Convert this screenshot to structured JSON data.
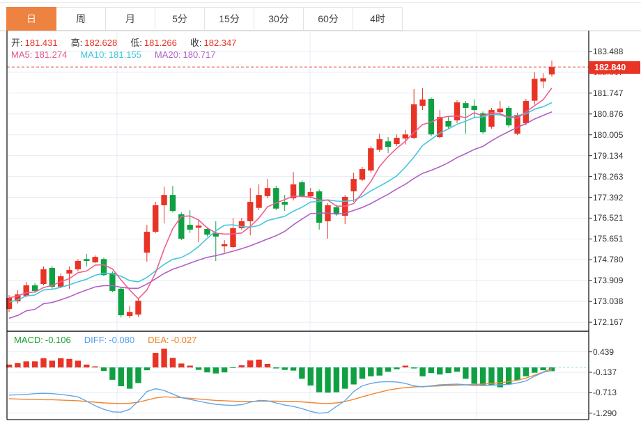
{
  "tabs": {
    "items": [
      {
        "label": "日",
        "active": true
      },
      {
        "label": "周",
        "active": false
      },
      {
        "label": "月",
        "active": false
      },
      {
        "label": "5分",
        "active": false
      },
      {
        "label": "15分",
        "active": false
      },
      {
        "label": "30分",
        "active": false
      },
      {
        "label": "60分",
        "active": false
      },
      {
        "label": "4时",
        "active": false
      }
    ]
  },
  "ohlc_legend": {
    "items": [
      {
        "label": "开:",
        "value": "181.431"
      },
      {
        "label": "高:",
        "value": "182.628"
      },
      {
        "label": "低:",
        "value": "181.266"
      },
      {
        "label": "收:",
        "value": "182.347"
      }
    ]
  },
  "ma_legend": {
    "items": [
      {
        "label": "MA5:",
        "value": "181.274",
        "color": "#e8538b"
      },
      {
        "label": "MA10:",
        "value": "181.155",
        "color": "#3fc3dc"
      },
      {
        "label": "MA20:",
        "value": "180.717",
        "color": "#b25ec6"
      }
    ]
  },
  "macd_legend": {
    "items": [
      {
        "label": "MACD:",
        "value": "-0.106",
        "color": "#18a22c"
      },
      {
        "label": "DIFF:",
        "value": "-0.080",
        "color": "#4f9ef0"
      },
      {
        "label": "DEA:",
        "value": "-0.027",
        "color": "#f0821e"
      }
    ]
  },
  "price_axis": {
    "ticks": [
      "183.488",
      "182.617",
      "181.747",
      "180.876",
      "180.005",
      "179.134",
      "178.263",
      "177.392",
      "176.521",
      "175.651",
      "174.780",
      "173.909",
      "173.038",
      "172.167"
    ],
    "current_price": "182.840"
  },
  "macd_axis": {
    "ticks": [
      "0.439",
      "-0.137",
      "-0.713",
      "-1.290"
    ]
  },
  "colors": {
    "up": "#e93325",
    "down": "#0fa043",
    "tab_active": "#ee8240",
    "ma5": "#ef5f8e",
    "ma10": "#44c6de",
    "ma20": "#b25ec6",
    "diff_line": "#64a6e8",
    "dea_line": "#f08632",
    "grid": "#e4ecf5",
    "zero_dash": "#9bd7e8",
    "frame": "#1a1a1a",
    "label_text": "#333333",
    "ohlc_value": "#e93325"
  },
  "chart_data": {
    "type": "candlestick+macd",
    "title": "",
    "price_ylim": [
      172.167,
      183.488
    ],
    "macd_ylim": [
      -1.29,
      0.439
    ],
    "grid": true,
    "current_price": 182.84,
    "candles": [
      [
        172.72,
        173.3,
        172.6,
        173.19
      ],
      [
        173.04,
        173.51,
        172.95,
        173.33
      ],
      [
        173.27,
        173.86,
        173.21,
        173.71
      ],
      [
        173.71,
        173.8,
        173.42,
        173.48
      ],
      [
        173.77,
        174.5,
        173.71,
        174.38
      ],
      [
        174.44,
        174.52,
        173.54,
        173.65
      ],
      [
        173.65,
        174.2,
        173.6,
        174.09
      ],
      [
        174.2,
        174.5,
        173.57,
        174.35
      ],
      [
        174.38,
        174.81,
        174.29,
        174.73
      ],
      [
        174.81,
        175.02,
        174.5,
        174.73
      ],
      [
        174.67,
        174.96,
        174.64,
        174.9
      ],
      [
        174.81,
        174.87,
        174.09,
        174.14
      ],
      [
        174.23,
        174.29,
        173.42,
        173.48
      ],
      [
        173.57,
        173.62,
        172.37,
        172.46
      ],
      [
        172.43,
        172.84,
        172.34,
        172.6
      ],
      [
        172.49,
        173.19,
        172.4,
        173.07
      ],
      [
        175.08,
        176.24,
        174.7,
        175.95
      ],
      [
        175.95,
        177.2,
        175.9,
        177.06
      ],
      [
        177.06,
        177.84,
        176.3,
        177.49
      ],
      [
        177.49,
        177.87,
        176.76,
        176.82
      ],
      [
        176.68,
        176.76,
        175.6,
        175.66
      ],
      [
        176.24,
        176.85,
        175.9,
        176.04
      ],
      [
        176.12,
        176.42,
        175.51,
        176.21
      ],
      [
        176.07,
        176.12,
        175.75,
        175.83
      ],
      [
        175.89,
        176.39,
        174.73,
        175.75
      ],
      [
        175.34,
        175.6,
        175.08,
        175.43
      ],
      [
        175.31,
        176.53,
        175.25,
        176.1
      ],
      [
        176.1,
        176.53,
        176.04,
        176.39
      ],
      [
        176.39,
        177.78,
        175.8,
        177.2
      ],
      [
        176.95,
        177.93,
        176.86,
        177.49
      ],
      [
        177.44,
        178.16,
        177.35,
        177.78
      ],
      [
        177.78,
        177.87,
        176.86,
        176.92
      ],
      [
        177.2,
        177.49,
        176.82,
        177.08
      ],
      [
        177.35,
        178.45,
        177.26,
        177.93
      ],
      [
        178.02,
        178.1,
        177.38,
        177.44
      ],
      [
        177.43,
        177.78,
        177.35,
        177.61
      ],
      [
        177.64,
        177.72,
        176.04,
        176.33
      ],
      [
        176.39,
        177.15,
        175.66,
        177.06
      ],
      [
        176.98,
        177.08,
        176.61,
        176.69
      ],
      [
        176.62,
        177.49,
        176.27,
        177.41
      ],
      [
        177.64,
        178.42,
        177.2,
        178.16
      ],
      [
        178.13,
        178.66,
        178.07,
        178.57
      ],
      [
        178.51,
        179.53,
        178.42,
        179.44
      ],
      [
        179.38,
        180.05,
        179.29,
        179.82
      ],
      [
        179.73,
        179.91,
        179.24,
        179.5
      ],
      [
        179.62,
        180.02,
        179.53,
        179.88
      ],
      [
        179.85,
        180.2,
        179.6,
        180.02
      ],
      [
        179.88,
        181.92,
        179.82,
        181.28
      ],
      [
        181.22,
        181.95,
        181.04,
        181.48
      ],
      [
        181.51,
        181.57,
        179.94,
        180.02
      ],
      [
        179.91,
        181.04,
        179.85,
        180.75
      ],
      [
        180.58,
        180.78,
        180.23,
        180.35
      ],
      [
        180.61,
        181.45,
        180.49,
        181.36
      ],
      [
        181.33,
        181.42,
        180.05,
        181.13
      ],
      [
        181.22,
        181.48,
        180.69,
        181.04
      ],
      [
        180.9,
        180.98,
        180.05,
        180.11
      ],
      [
        180.34,
        181.13,
        180.26,
        181.04
      ],
      [
        180.95,
        181.42,
        180.81,
        181.1
      ],
      [
        181.13,
        181.22,
        180.31,
        180.4
      ],
      [
        180.05,
        180.93,
        179.99,
        180.84
      ],
      [
        180.49,
        181.51,
        180.4,
        181.42
      ],
      [
        181.431,
        182.628,
        181.266,
        182.347
      ],
      [
        182.23,
        182.58,
        181.95,
        182.37
      ],
      [
        182.53,
        183.11,
        182.44,
        182.84
      ]
    ],
    "macd": {
      "histogram": [
        0.08,
        0.12,
        0.17,
        0.17,
        0.26,
        0.19,
        0.26,
        0.24,
        0.19,
        0.08,
        0.03,
        -0.1,
        -0.35,
        -0.53,
        -0.6,
        -0.44,
        -0.08,
        0.41,
        0.53,
        0.27,
        0.11,
        0.05,
        -0.07,
        -0.14,
        -0.17,
        -0.14,
        -0.02,
        0.06,
        0.2,
        0.22,
        0.1,
        -0.03,
        -0.07,
        -0.09,
        -0.32,
        -0.51,
        -0.7,
        -0.71,
        -0.7,
        -0.6,
        -0.48,
        -0.32,
        -0.25,
        -0.23,
        -0.12,
        -0.05,
        0.05,
        -0.03,
        -0.25,
        -0.16,
        -0.2,
        -0.16,
        -0.12,
        -0.32,
        -0.46,
        -0.51,
        -0.51,
        -0.56,
        -0.48,
        -0.36,
        -0.25,
        -0.15,
        -0.08,
        -0.106
      ],
      "diff": [
        -0.78,
        -0.77,
        -0.76,
        -0.74,
        -0.73,
        -0.74,
        -0.76,
        -0.79,
        -0.83,
        -0.95,
        -1.08,
        -1.18,
        -1.25,
        -1.26,
        -1.18,
        -0.95,
        -0.68,
        -0.6,
        -0.65,
        -0.75,
        -0.85,
        -0.9,
        -0.95,
        -1.0,
        -1.04,
        -1.06,
        -1.07,
        -1.05,
        -0.98,
        -0.93,
        -0.94,
        -1.0,
        -1.06,
        -1.1,
        -1.16,
        -1.24,
        -1.29,
        -1.27,
        -1.1,
        -0.94,
        -0.68,
        -0.52,
        -0.45,
        -0.41,
        -0.4,
        -0.41,
        -0.45,
        -0.52,
        -0.55,
        -0.52,
        -0.49,
        -0.48,
        -0.47,
        -0.49,
        -0.51,
        -0.51,
        -0.5,
        -0.49,
        -0.48,
        -0.44,
        -0.38,
        -0.25,
        -0.14,
        -0.08
      ],
      "dea": [
        -0.88,
        -0.89,
        -0.9,
        -0.9,
        -0.91,
        -0.91,
        -0.92,
        -0.93,
        -0.94,
        -0.96,
        -0.98,
        -1.0,
        -1.01,
        -1.02,
        -1.01,
        -0.98,
        -0.92,
        -0.86,
        -0.83,
        -0.84,
        -0.85,
        -0.87,
        -0.89,
        -0.91,
        -0.93,
        -0.94,
        -0.95,
        -0.96,
        -0.96,
        -0.95,
        -0.95,
        -0.95,
        -0.96,
        -0.96,
        -0.97,
        -0.99,
        -1.01,
        -1.02,
        -1.0,
        -0.96,
        -0.9,
        -0.83,
        -0.76,
        -0.7,
        -0.64,
        -0.6,
        -0.57,
        -0.55,
        -0.54,
        -0.53,
        -0.52,
        -0.51,
        -0.5,
        -0.49,
        -0.48,
        -0.47,
        -0.45,
        -0.43,
        -0.4,
        -0.36,
        -0.3,
        -0.22,
        -0.13,
        -0.03
      ]
    }
  }
}
